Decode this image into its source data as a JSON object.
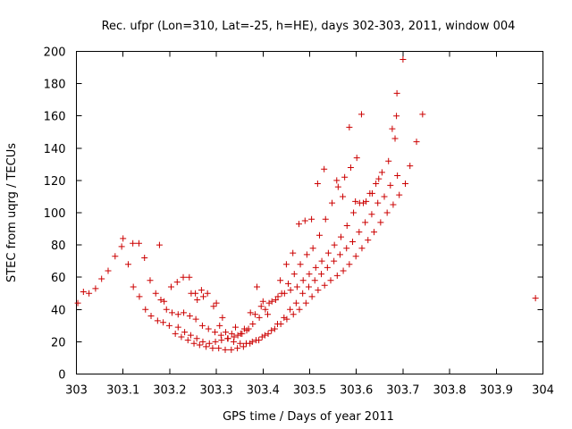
{
  "chart_data": {
    "type": "scatter",
    "title": "Rec. ufpr (Lon=310, Lat=-25, h=HE), days 302-303, 2011, window 004",
    "xlabel": "GPS time / Days of year 2011",
    "ylabel": "STEC from uqrg / TECUs",
    "xlim": [
      303,
      304
    ],
    "ylim": [
      0,
      200
    ],
    "x_ticks": [
      "303",
      "303.1",
      "303.2",
      "303.3",
      "303.4",
      "303.5",
      "303.6",
      "303.7",
      "303.8",
      "303.9",
      "304"
    ],
    "y_ticks": [
      "0",
      "20",
      "40",
      "60",
      "80",
      "100",
      "120",
      "140",
      "160",
      "180",
      "200"
    ],
    "grid": false,
    "marker": "+",
    "color": "#cc0000",
    "series": [
      {
        "points": [
          [
            303.003,
            44
          ],
          [
            303.015,
            51
          ],
          [
            303.027,
            50
          ],
          [
            303.041,
            53
          ],
          [
            303.054,
            59
          ],
          [
            303.068,
            64
          ],
          [
            303.083,
            73
          ],
          [
            303.097,
            79
          ],
          [
            303.1,
            84
          ],
          [
            303.111,
            68
          ],
          [
            303.122,
            54
          ],
          [
            303.135,
            48
          ],
          [
            303.148,
            40
          ],
          [
            303.16,
            36
          ],
          [
            303.174,
            33
          ],
          [
            303.186,
            32
          ],
          [
            303.199,
            30
          ],
          [
            303.212,
            25
          ],
          [
            303.225,
            23
          ],
          [
            303.239,
            21
          ],
          [
            303.252,
            19
          ],
          [
            303.264,
            18
          ],
          [
            303.278,
            17
          ],
          [
            303.292,
            16
          ],
          [
            303.305,
            16
          ],
          [
            303.319,
            15
          ],
          [
            303.332,
            15
          ],
          [
            303.345,
            16
          ],
          [
            303.358,
            17
          ],
          [
            303.372,
            19
          ],
          [
            303.385,
            21
          ],
          [
            303.398,
            23
          ],
          [
            303.411,
            25
          ],
          [
            303.425,
            28
          ],
          [
            303.438,
            31
          ],
          [
            303.451,
            34
          ],
          [
            303.465,
            37
          ],
          [
            303.478,
            40
          ],
          [
            303.492,
            44
          ],
          [
            303.505,
            48
          ],
          [
            303.518,
            52
          ],
          [
            303.532,
            55
          ],
          [
            303.545,
            58
          ],
          [
            303.559,
            61
          ],
          [
            303.572,
            64
          ],
          [
            303.585,
            68
          ],
          [
            303.599,
            73
          ],
          [
            303.612,
            78
          ],
          [
            303.625,
            83
          ],
          [
            303.638,
            88
          ],
          [
            303.652,
            94
          ],
          [
            303.666,
            100
          ],
          [
            303.679,
            105
          ],
          [
            303.692,
            111
          ],
          [
            303.705,
            118
          ],
          [
            303.121,
            81
          ],
          [
            303.134,
            81
          ],
          [
            303.146,
            72
          ],
          [
            303.158,
            58
          ],
          [
            303.17,
            50
          ],
          [
            303.181,
            46
          ],
          [
            303.193,
            40
          ],
          [
            303.205,
            38
          ],
          [
            303.218,
            37
          ],
          [
            303.23,
            38
          ],
          [
            303.243,
            36
          ],
          [
            303.256,
            34
          ],
          [
            303.27,
            30
          ],
          [
            303.283,
            28
          ],
          [
            303.297,
            26
          ],
          [
            303.31,
            24
          ],
          [
            303.324,
            22
          ],
          [
            303.337,
            20
          ],
          [
            303.351,
            19
          ],
          [
            303.364,
            19
          ],
          [
            303.377,
            20
          ],
          [
            303.391,
            21
          ],
          [
            303.404,
            24
          ],
          [
            303.418,
            27
          ],
          [
            303.431,
            31
          ],
          [
            303.445,
            35
          ],
          [
            303.458,
            40
          ],
          [
            303.471,
            44
          ],
          [
            303.485,
            50
          ],
          [
            303.498,
            54
          ],
          [
            303.511,
            58
          ],
          [
            303.525,
            62
          ],
          [
            303.538,
            66
          ],
          [
            303.552,
            70
          ],
          [
            303.565,
            74
          ],
          [
            303.579,
            78
          ],
          [
            303.592,
            82
          ],
          [
            303.606,
            88
          ],
          [
            303.619,
            94
          ],
          [
            303.633,
            99
          ],
          [
            303.646,
            106
          ],
          [
            303.66,
            110
          ],
          [
            303.673,
            117
          ],
          [
            303.688,
            123
          ],
          [
            303.178,
            80
          ],
          [
            303.188,
            45
          ],
          [
            303.203,
            54
          ],
          [
            303.216,
            57
          ],
          [
            303.229,
            60
          ],
          [
            303.242,
            60
          ],
          [
            303.255,
            50
          ],
          [
            303.268,
            52
          ],
          [
            303.281,
            50
          ],
          [
            303.294,
            42
          ],
          [
            303.307,
            30
          ],
          [
            303.32,
            26
          ],
          [
            303.333,
            25
          ],
          [
            303.346,
            24
          ],
          [
            303.36,
            28
          ],
          [
            303.373,
            38
          ],
          [
            303.387,
            54
          ],
          [
            303.4,
            45
          ],
          [
            303.413,
            44
          ],
          [
            303.427,
            46
          ],
          [
            303.44,
            50
          ],
          [
            303.454,
            56
          ],
          [
            303.467,
            62
          ],
          [
            303.48,
            68
          ],
          [
            303.494,
            74
          ],
          [
            303.507,
            78
          ],
          [
            303.521,
            86
          ],
          [
            303.534,
            96
          ],
          [
            303.548,
            106
          ],
          [
            303.561,
            116
          ],
          [
            303.575,
            122
          ],
          [
            303.588,
            128
          ],
          [
            303.601,
            134
          ],
          [
            303.615,
            106
          ],
          [
            303.629,
            112
          ],
          [
            303.642,
            118
          ],
          [
            303.655,
            125
          ],
          [
            303.669,
            132
          ],
          [
            303.683,
            146
          ],
          [
            303.218,
            29
          ],
          [
            303.232,
            26
          ],
          [
            303.245,
            24
          ],
          [
            303.258,
            22
          ],
          [
            303.271,
            20
          ],
          [
            303.285,
            19
          ],
          [
            303.298,
            20
          ],
          [
            303.311,
            21
          ],
          [
            303.325,
            22
          ],
          [
            303.338,
            23
          ],
          [
            303.352,
            25
          ],
          [
            303.365,
            27
          ],
          [
            303.378,
            31
          ],
          [
            303.392,
            35
          ],
          [
            303.405,
            40
          ],
          [
            303.419,
            45
          ],
          [
            303.432,
            48
          ],
          [
            303.446,
            50
          ],
          [
            303.459,
            52
          ],
          [
            303.473,
            54
          ],
          [
            303.486,
            58
          ],
          [
            303.499,
            62
          ],
          [
            303.513,
            66
          ],
          [
            303.526,
            70
          ],
          [
            303.54,
            75
          ],
          [
            303.553,
            80
          ],
          [
            303.567,
            85
          ],
          [
            303.58,
            92
          ],
          [
            303.594,
            100
          ],
          [
            303.607,
            106
          ],
          [
            303.621,
            107
          ],
          [
            303.634,
            112
          ],
          [
            303.648,
            121
          ],
          [
            303.246,
            50
          ],
          [
            303.259,
            46
          ],
          [
            303.272,
            48
          ],
          [
            303.3,
            44
          ],
          [
            303.313,
            35
          ],
          [
            303.341,
            29
          ],
          [
            303.355,
            25
          ],
          [
            303.369,
            28
          ],
          [
            303.383,
            37
          ],
          [
            303.396,
            42
          ],
          [
            303.41,
            37
          ],
          [
            303.437,
            58
          ],
          [
            303.45,
            68
          ],
          [
            303.464,
            75
          ],
          [
            303.477,
            93
          ],
          [
            303.49,
            95
          ],
          [
            303.504,
            96
          ],
          [
            303.517,
            118
          ],
          [
            303.531,
            127
          ],
          [
            303.558,
            120
          ],
          [
            303.571,
            110
          ],
          [
            303.585,
            153
          ],
          [
            303.598,
            107
          ],
          [
            303.611,
            161
          ],
          [
            303.677,
            152
          ],
          [
            303.687,
            174
          ],
          [
            303.7,
            195
          ],
          [
            303.686,
            160
          ],
          [
            303.715,
            129
          ],
          [
            303.729,
            144
          ],
          [
            303.742,
            161
          ],
          [
            303.984,
            47
          ]
        ]
      }
    ]
  }
}
